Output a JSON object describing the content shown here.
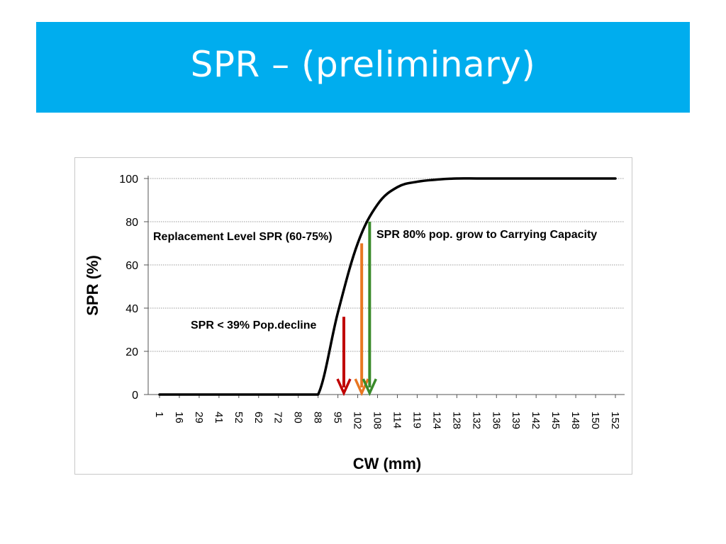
{
  "slide": {
    "title": "SPR – (preliminary)"
  },
  "chart_data": {
    "type": "line",
    "title": "",
    "xlabel": "CW (mm)",
    "ylabel": "SPR (%)",
    "ylim": [
      0,
      100
    ],
    "yticks": [
      0,
      20,
      40,
      60,
      80,
      100
    ],
    "grid": "horizontal-dotted",
    "categories": [
      "1",
      "16",
      "29",
      "41",
      "52",
      "62",
      "72",
      "80",
      "88",
      "95",
      "102",
      "108",
      "114",
      "119",
      "124",
      "128",
      "132",
      "136",
      "139",
      "142",
      "145",
      "148",
      "150",
      "152"
    ],
    "series": [
      {
        "values": [
          0,
          0,
          0,
          0,
          0,
          0,
          0,
          0,
          0,
          38,
          70,
          88,
          96,
          98.5,
          99.5,
          100,
          100,
          100,
          100,
          100,
          100,
          100,
          100,
          100
        ]
      }
    ],
    "annotations": [
      {
        "text": "Replacement Level SPR (60-75%)",
        "color": "#000000"
      },
      {
        "text": "SPR 80% pop. grow to Carrying Capacity",
        "color": "#000000"
      },
      {
        "text": "SPR < 39% Pop.decline",
        "color": "#000000"
      }
    ],
    "arrows": [
      {
        "name": "spr-39-arrow",
        "from_y": 36,
        "to_y": 0,
        "x_cat_index": 9.3,
        "color": "#C00000"
      },
      {
        "name": "spr-70-arrow",
        "from_y": 70,
        "to_y": 0,
        "x_cat_index": 10.2,
        "color": "#E87722"
      },
      {
        "name": "spr-80-arrow",
        "from_y": 80,
        "to_y": 0,
        "x_cat_index": 10.6,
        "color": "#3A8A2A"
      }
    ]
  }
}
